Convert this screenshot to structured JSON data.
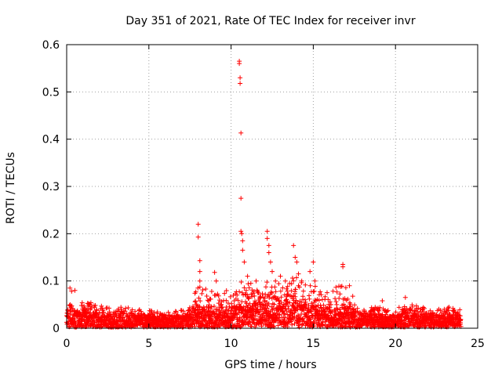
{
  "chart_data": {
    "type": "scatter",
    "title": "Day 351 of 2021, Rate Of TEC Index for receiver invr",
    "xlabel": "GPS time / hours",
    "ylabel": "ROTI / TECUs",
    "xlim": [
      0,
      25
    ],
    "ylim": [
      0,
      0.6
    ],
    "xticks": [
      "0",
      "5",
      "10",
      "15",
      "20",
      "25"
    ],
    "yticks": [
      "0",
      "0.1",
      "0.2",
      "0.3",
      "0.4",
      "0.5",
      "0.6"
    ],
    "grid": true,
    "marker": "+",
    "series_color": "#ff0000",
    "background_envelope": [
      [
        0.0,
        0.035
      ],
      [
        0.2,
        0.075
      ],
      [
        0.5,
        0.045
      ],
      [
        1.0,
        0.05
      ],
      [
        1.5,
        0.055
      ],
      [
        2.0,
        0.045
      ],
      [
        3.0,
        0.035
      ],
      [
        3.5,
        0.045
      ],
      [
        4.0,
        0.04
      ],
      [
        5.0,
        0.035
      ],
      [
        6.0,
        0.03
      ],
      [
        7.0,
        0.035
      ],
      [
        7.5,
        0.04
      ],
      [
        8.0,
        0.06
      ],
      [
        8.5,
        0.055
      ],
      [
        9.0,
        0.05
      ],
      [
        9.5,
        0.055
      ],
      [
        10.0,
        0.055
      ],
      [
        10.5,
        0.07
      ],
      [
        11.0,
        0.065
      ],
      [
        11.5,
        0.075
      ],
      [
        12.0,
        0.07
      ],
      [
        12.5,
        0.07
      ],
      [
        13.0,
        0.065
      ],
      [
        13.5,
        0.075
      ],
      [
        14.0,
        0.08
      ],
      [
        14.5,
        0.07
      ],
      [
        15.0,
        0.065
      ],
      [
        15.5,
        0.06
      ],
      [
        16.0,
        0.05
      ],
      [
        16.5,
        0.06
      ],
      [
        17.0,
        0.06
      ],
      [
        17.5,
        0.045
      ],
      [
        18.0,
        0.035
      ],
      [
        19.0,
        0.045
      ],
      [
        20.0,
        0.035
      ],
      [
        20.5,
        0.05
      ],
      [
        21.0,
        0.045
      ],
      [
        22.0,
        0.04
      ],
      [
        23.0,
        0.045
      ],
      [
        24.0,
        0.035
      ]
    ],
    "notable_points": [
      [
        0.2,
        0.085
      ],
      [
        0.3,
        0.078
      ],
      [
        0.5,
        0.08
      ],
      [
        8.0,
        0.22
      ],
      [
        8.0,
        0.193
      ],
      [
        8.1,
        0.143
      ],
      [
        8.1,
        0.12
      ],
      [
        8.1,
        0.1
      ],
      [
        9.0,
        0.118
      ],
      [
        9.1,
        0.1
      ],
      [
        10.5,
        0.565
      ],
      [
        10.5,
        0.56
      ],
      [
        10.55,
        0.53
      ],
      [
        10.55,
        0.518
      ],
      [
        10.6,
        0.413
      ],
      [
        10.6,
        0.275
      ],
      [
        10.6,
        0.205
      ],
      [
        10.65,
        0.2
      ],
      [
        10.7,
        0.185
      ],
      [
        10.7,
        0.165
      ],
      [
        10.8,
        0.14
      ],
      [
        11.0,
        0.11
      ],
      [
        11.2,
        0.095
      ],
      [
        12.2,
        0.205
      ],
      [
        12.2,
        0.19
      ],
      [
        12.3,
        0.175
      ],
      [
        12.3,
        0.16
      ],
      [
        12.4,
        0.14
      ],
      [
        12.5,
        0.12
      ],
      [
        12.7,
        0.1
      ],
      [
        13.0,
        0.11
      ],
      [
        13.3,
        0.1
      ],
      [
        13.8,
        0.175
      ],
      [
        13.9,
        0.15
      ],
      [
        14.0,
        0.14
      ],
      [
        14.1,
        0.115
      ],
      [
        14.3,
        0.1
      ],
      [
        14.8,
        0.12
      ],
      [
        15.0,
        0.14
      ],
      [
        15.1,
        0.1
      ],
      [
        16.8,
        0.135
      ],
      [
        16.8,
        0.13
      ],
      [
        17.2,
        0.09
      ],
      [
        19.2,
        0.058
      ],
      [
        20.6,
        0.065
      ]
    ]
  }
}
